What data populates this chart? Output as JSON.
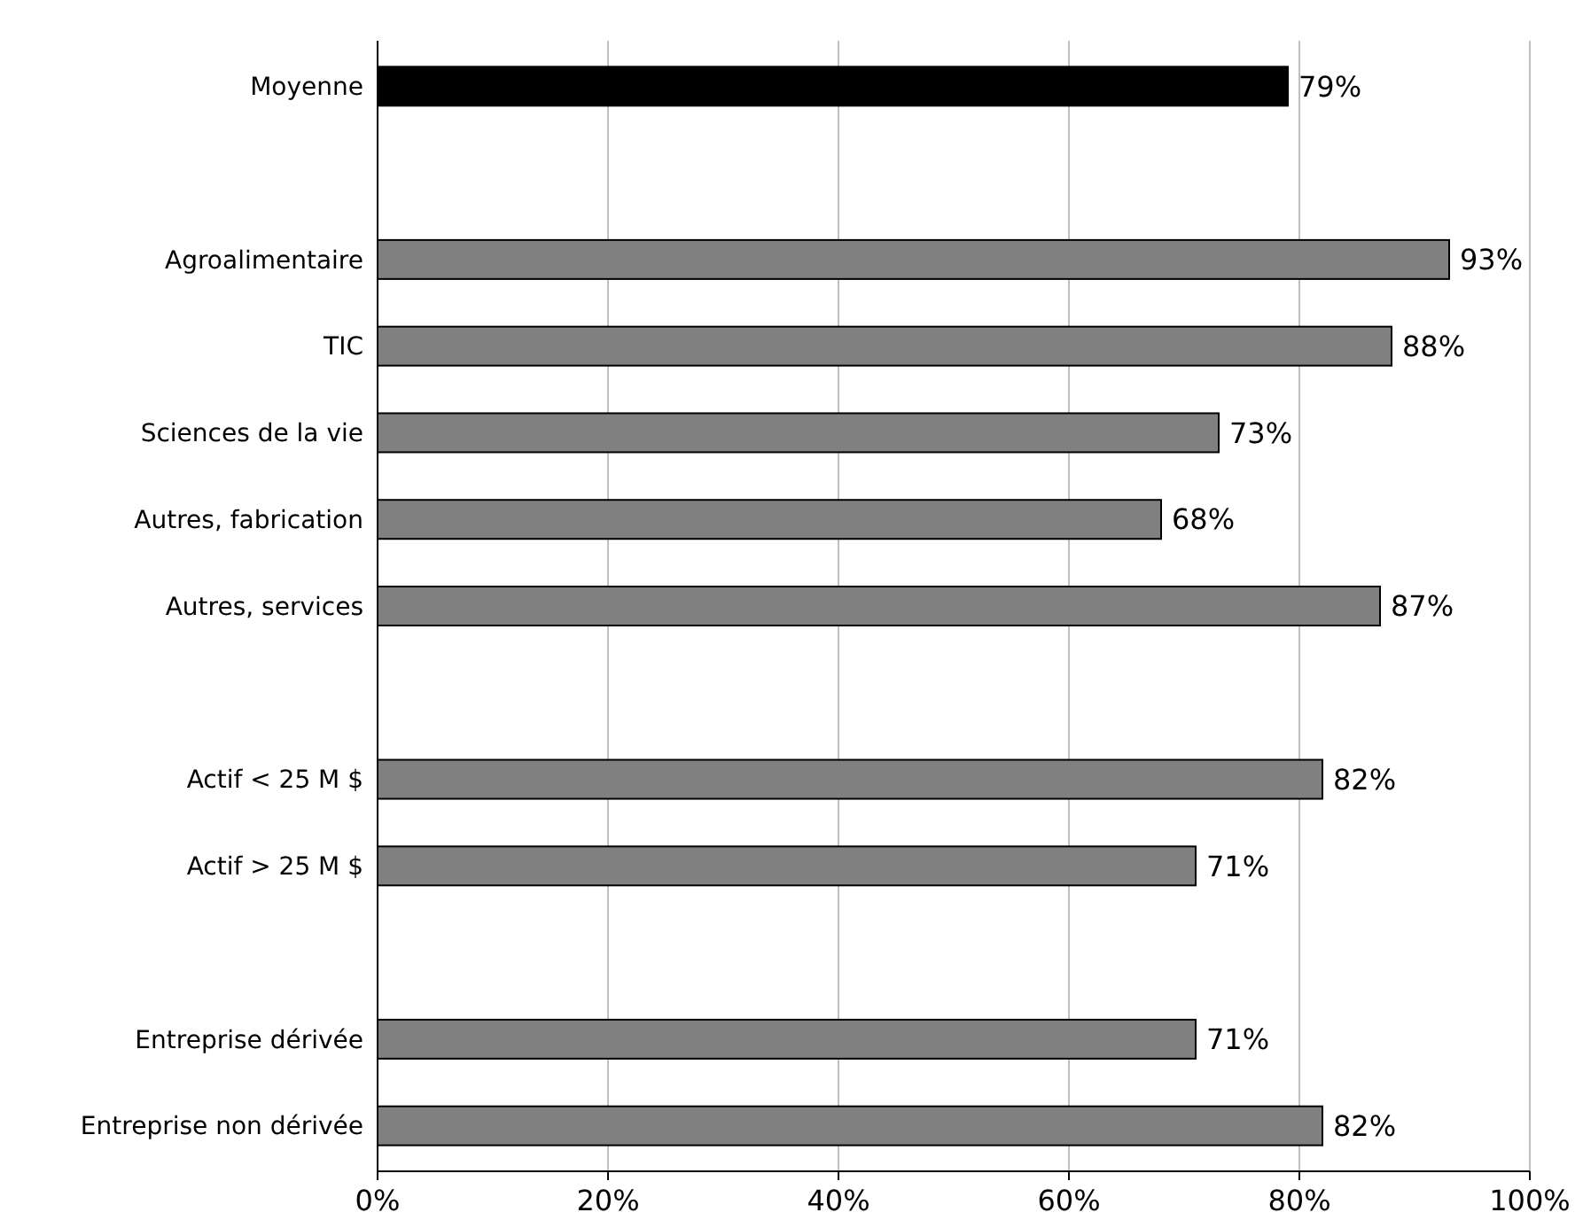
{
  "chart_data": {
    "type": "bar",
    "orientation": "horizontal",
    "categories": [
      "Moyenne",
      null,
      "Agroalimentaire",
      "TIC",
      "Sciences de la vie",
      "Autres, fabrication",
      "Autres, services",
      null,
      "Actif < 25 M $",
      "Actif > 25 M $",
      null,
      "Entreprise dérivée",
      "Entreprise non dérivée"
    ],
    "values": [
      79,
      null,
      93,
      88,
      73,
      68,
      87,
      null,
      82,
      71,
      null,
      71,
      82
    ],
    "colors": [
      "#000000",
      null,
      "#808080",
      "#808080",
      "#808080",
      "#808080",
      "#808080",
      null,
      "#808080",
      "#808080",
      null,
      "#808080",
      "#808080"
    ],
    "value_labels": [
      "79%",
      null,
      "93%",
      "88%",
      "73%",
      "68%",
      "87%",
      null,
      "82%",
      "71%",
      null,
      "71%",
      "82%"
    ],
    "xlim": [
      0,
      100
    ],
    "xticks": [
      {
        "value": 0,
        "label": "0%"
      },
      {
        "value": 20,
        "label": "20%"
      },
      {
        "value": 40,
        "label": "40%"
      },
      {
        "value": 60,
        "label": "60%"
      },
      {
        "value": 80,
        "label": "80%"
      },
      {
        "value": 100,
        "label": "100%"
      }
    ],
    "grid": "x"
  }
}
